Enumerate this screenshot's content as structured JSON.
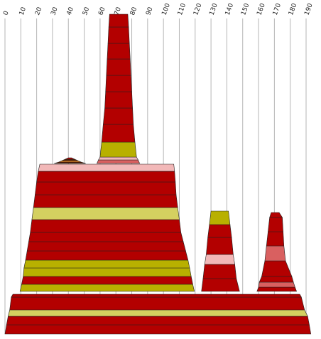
{
  "chart_data": {
    "type": "area",
    "title": "",
    "xlabel": "",
    "ylabel": "",
    "x_ticks": [
      0,
      10,
      20,
      30,
      40,
      50,
      60,
      70,
      80,
      90,
      100,
      110,
      120,
      130,
      140,
      150,
      160,
      170,
      180,
      190
    ],
    "xlim": [
      0,
      193
    ],
    "grid": "vertical",
    "colors": {
      "red": "#b30000",
      "olive": "#b8b000",
      "khaki": "#d4d060",
      "pink": "#f2b8b8",
      "rose": "#d96060",
      "brown": "#5a1a00",
      "orange": "#e08020"
    },
    "peaks": [
      {
        "name": "main-mound",
        "layers": [
          {
            "x0": 0,
            "x1": 193,
            "x0t": 1,
            "x1t": 192,
            "h": 13,
            "color": "red"
          },
          {
            "x0": 1,
            "x1": 192,
            "x0t": 2,
            "x1t": 191,
            "h": 12,
            "color": "red"
          },
          {
            "x0": 2,
            "x1": 191,
            "x0t": 3,
            "x1t": 189,
            "h": 9,
            "color": "khaki"
          },
          {
            "x0": 3,
            "x1": 189,
            "x0t": 4,
            "x1t": 187,
            "h": 18,
            "color": "red"
          },
          {
            "x0": 4,
            "x1": 187,
            "x0t": 5,
            "x1t": 186,
            "h": 4,
            "color": "red"
          }
        ]
      },
      {
        "name": "left-plateau",
        "layers": [
          {
            "x0": 9.5,
            "x1": 119.5,
            "x0t": 10.5,
            "x1t": 118.5,
            "h": 10,
            "color": "olive"
          },
          {
            "x0": 10.5,
            "x1": 118.5,
            "x0t": 11.5,
            "x1t": 117.5,
            "h": 11,
            "color": "red"
          },
          {
            "x0": 11.5,
            "x1": 117.5,
            "x0t": 12,
            "x1t": 116.5,
            "h": 12,
            "color": "olive"
          },
          {
            "x0": 12,
            "x1": 116.5,
            "x0t": 13,
            "x1t": 115.5,
            "h": 11,
            "color": "olive"
          },
          {
            "x0": 13,
            "x1": 115.5,
            "x0t": 14,
            "x1t": 114,
            "h": 13,
            "color": "red"
          },
          {
            "x0": 14,
            "x1": 114,
            "x0t": 15,
            "x1t": 112.5,
            "h": 13,
            "color": "red"
          },
          {
            "x0": 15,
            "x1": 112.5,
            "x0t": 16,
            "x1t": 111,
            "h": 13,
            "color": "red"
          },
          {
            "x0": 16,
            "x1": 111,
            "x0t": 17,
            "x1t": 110,
            "h": 18,
            "color": "red"
          },
          {
            "x0": 17,
            "x1": 110,
            "x0t": 18,
            "x1t": 109,
            "h": 17,
            "color": "khaki"
          },
          {
            "x0": 18,
            "x1": 109,
            "x0t": 19,
            "x1t": 108,
            "h": 18,
            "color": "red"
          },
          {
            "x0": 19,
            "x1": 108,
            "x0t": 20,
            "x1t": 107.5,
            "h": 18,
            "color": "red"
          },
          {
            "x0": 20,
            "x1": 107.5,
            "x0t": 21,
            "x1t": 107,
            "h": 15,
            "color": "red"
          },
          {
            "x0": 21,
            "x1": 107,
            "x0t": 22,
            "x1t": 106.5,
            "h": 10,
            "color": "pink"
          }
        ]
      },
      {
        "name": "small-bump",
        "layers": [
          {
            "x0": 31,
            "x1": 51,
            "x0t": 34,
            "x1t": 48,
            "h": 2,
            "color": "brown"
          },
          {
            "x0": 34,
            "x1": 48,
            "x0t": 36,
            "x1t": 46,
            "h": 2,
            "color": "orange"
          },
          {
            "x0": 36,
            "x1": 46,
            "x0t": 38,
            "x1t": 44,
            "h": 2,
            "color": "brown"
          },
          {
            "x0": 38,
            "x1": 44,
            "x0t": 40,
            "x1t": 42,
            "h": 2,
            "color": "red"
          }
        ]
      },
      {
        "name": "tall-spire",
        "layers": [
          {
            "x0": 58,
            "x1": 85,
            "x0t": 59,
            "x1t": 84,
            "h": 5,
            "color": "rose"
          },
          {
            "x0": 59,
            "x1": 84,
            "x0t": 60,
            "x1t": 83,
            "h": 4,
            "color": "pink"
          },
          {
            "x0": 60,
            "x1": 83,
            "x0t": 61,
            "x1t": 82,
            "h": 21,
            "color": "olive"
          },
          {
            "x0": 61,
            "x1": 82,
            "x0t": 62,
            "x1t": 81,
            "h": 25,
            "color": "red"
          },
          {
            "x0": 62,
            "x1": 81,
            "x0t": 63,
            "x1t": 80.5,
            "h": 23,
            "color": "red"
          },
          {
            "x0": 63,
            "x1": 80.5,
            "x0t": 63.5,
            "x1t": 80,
            "h": 23,
            "color": "red"
          },
          {
            "x0": 63.5,
            "x1": 80,
            "x0t": 64,
            "x1t": 79.5,
            "h": 23,
            "color": "red"
          },
          {
            "x0": 64,
            "x1": 79.5,
            "x0t": 64.5,
            "x1t": 79,
            "h": 23,
            "color": "red"
          },
          {
            "x0": 64.5,
            "x1": 79,
            "x0t": 65,
            "x1t": 78.5,
            "h": 22,
            "color": "red"
          },
          {
            "x0": 65,
            "x1": 78.5,
            "x0t": 65.5,
            "x1t": 78,
            "h": 23,
            "color": "red"
          },
          {
            "x0": 65.5,
            "x1": 78,
            "x0t": 66,
            "x1t": 77.5,
            "h": 18,
            "color": "red"
          }
        ]
      },
      {
        "name": "middle-cone",
        "layers": [
          {
            "x0": 124,
            "x1": 148,
            "x0t": 125,
            "x1t": 146,
            "h": 18,
            "color": "red"
          },
          {
            "x0": 125,
            "x1": 146,
            "x0t": 126,
            "x1t": 145,
            "h": 20,
            "color": "red"
          },
          {
            "x0": 126,
            "x1": 145,
            "x0t": 127,
            "x1t": 144,
            "h": 14,
            "color": "pink"
          },
          {
            "x0": 127,
            "x1": 144,
            "x0t": 128,
            "x1t": 143,
            "h": 24,
            "color": "red"
          },
          {
            "x0": 128,
            "x1": 143,
            "x0t": 129,
            "x1t": 142,
            "h": 18,
            "color": "red"
          },
          {
            "x0": 129,
            "x1": 142,
            "x0t": 130,
            "x1t": 141,
            "h": 19,
            "color": "olive"
          }
        ]
      },
      {
        "name": "right-cone",
        "layers": [
          {
            "x0": 159,
            "x1": 184,
            "x0t": 160,
            "x1t": 183,
            "h": 6,
            "color": "red"
          },
          {
            "x0": 160,
            "x1": 183,
            "x0t": 160.5,
            "x1t": 182,
            "h": 7,
            "color": "rose"
          },
          {
            "x0": 160.5,
            "x1": 182,
            "x0t": 162,
            "x1t": 181,
            "h": 8,
            "color": "red"
          },
          {
            "x0": 162,
            "x1": 181,
            "x0t": 164,
            "x1t": 177,
            "h": 22,
            "color": "red"
          },
          {
            "x0": 164,
            "x1": 177,
            "x0t": 165,
            "x1t": 176,
            "h": 21,
            "color": "rose"
          },
          {
            "x0": 165,
            "x1": 176,
            "x0t": 166,
            "x1t": 175.5,
            "h": 20,
            "color": "red"
          },
          {
            "x0": 166,
            "x1": 175.5,
            "x0t": 167,
            "x1t": 175,
            "h": 20,
            "color": "red"
          },
          {
            "x0": 167,
            "x1": 175,
            "x0t": 168,
            "x1t": 173,
            "h": 7,
            "color": "red"
          }
        ]
      }
    ]
  }
}
